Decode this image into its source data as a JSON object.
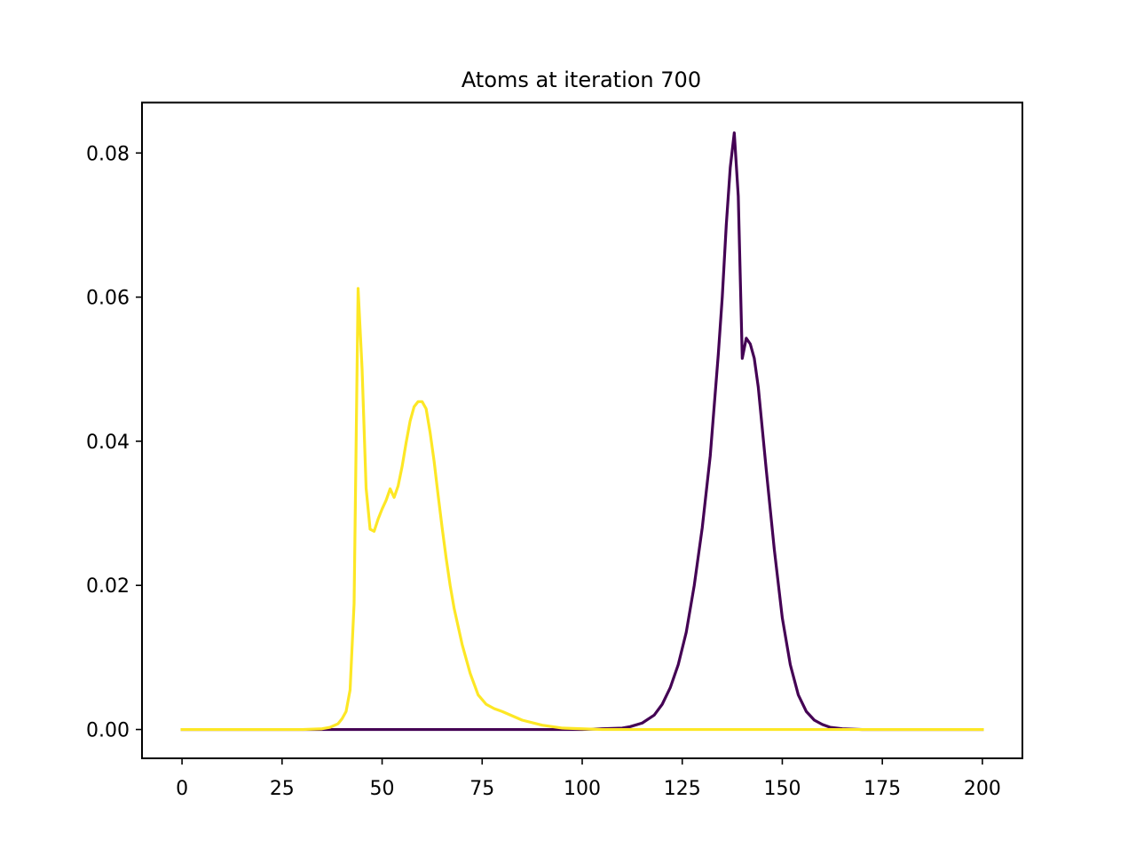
{
  "chart_data": {
    "type": "line",
    "title": "Atoms at iteration 700",
    "xlabel": "",
    "ylabel": "",
    "xlim": [
      -10,
      210
    ],
    "ylim": [
      -0.004,
      0.087
    ],
    "xticks": [
      0,
      25,
      50,
      75,
      100,
      125,
      150,
      175,
      200
    ],
    "xtick_labels": [
      "0",
      "25",
      "50",
      "75",
      "100",
      "125",
      "150",
      "175",
      "200"
    ],
    "yticks": [
      0.0,
      0.02,
      0.04,
      0.06,
      0.08
    ],
    "ytick_labels": [
      "0.00",
      "0.02",
      "0.04",
      "0.06",
      "0.08"
    ],
    "grid": false,
    "legend": false,
    "series": [
      {
        "color": "#440154",
        "x": [
          0,
          100,
          105,
          110,
          112,
          115,
          118,
          120,
          122,
          124,
          126,
          128,
          130,
          132,
          134,
          135,
          136,
          137,
          138,
          139,
          140,
          141,
          142,
          143,
          144,
          146,
          148,
          150,
          152,
          154,
          156,
          158,
          160,
          162,
          165,
          170,
          175,
          200
        ],
        "y": [
          0.0,
          0.0,
          0.0001,
          0.0002,
          0.0004,
          0.0009,
          0.002,
          0.0035,
          0.0058,
          0.009,
          0.0135,
          0.02,
          0.028,
          0.038,
          0.052,
          0.06,
          0.07,
          0.078,
          0.0828,
          0.074,
          0.0515,
          0.0543,
          0.0535,
          0.0515,
          0.0475,
          0.036,
          0.025,
          0.0155,
          0.009,
          0.0048,
          0.0025,
          0.0013,
          0.0007,
          0.0003,
          0.0001,
          0.0,
          0.0,
          0.0
        ]
      },
      {
        "color": "#fde725",
        "x": [
          0,
          30,
          35,
          37,
          39,
          40,
          41,
          42,
          43,
          44,
          45,
          46,
          47,
          48,
          49,
          50,
          51,
          52,
          53,
          54,
          55,
          56,
          57,
          58,
          59,
          60,
          61,
          62,
          63,
          64,
          65,
          66,
          67,
          68,
          70,
          72,
          74,
          76,
          78,
          80,
          85,
          90,
          95,
          100,
          105,
          200
        ],
        "y": [
          0.0,
          0.0,
          0.0001,
          0.0003,
          0.0008,
          0.0015,
          0.0025,
          0.0055,
          0.0175,
          0.0612,
          0.05,
          0.0335,
          0.0278,
          0.0275,
          0.0292,
          0.0306,
          0.0318,
          0.0334,
          0.0322,
          0.0338,
          0.0365,
          0.0398,
          0.0428,
          0.0448,
          0.0455,
          0.0455,
          0.0445,
          0.0412,
          0.0372,
          0.0325,
          0.028,
          0.0238,
          0.02,
          0.0168,
          0.0118,
          0.0078,
          0.0048,
          0.0035,
          0.0029,
          0.0025,
          0.0013,
          0.0006,
          0.0002,
          0.0001,
          0.0,
          0.0
        ]
      }
    ]
  }
}
